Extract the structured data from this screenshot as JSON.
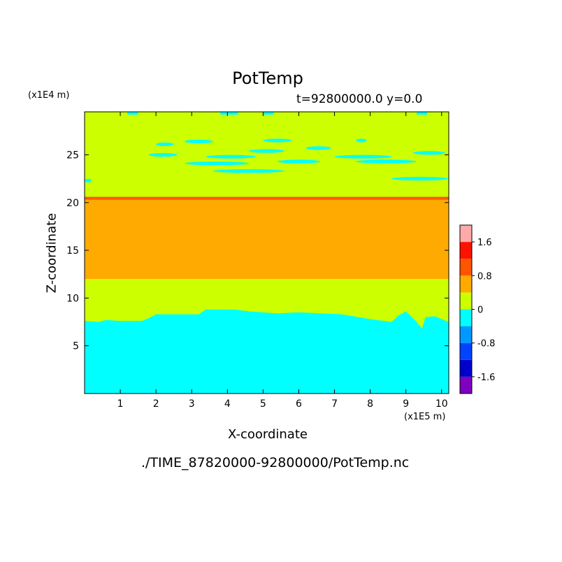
{
  "chart_data": {
    "type": "heatmap",
    "title": "PotTemp",
    "subtitle": "t=92800000.0 y=0.0",
    "xlabel": "X-coordinate",
    "ylabel": "Z-coordinate",
    "x_unit_label": "(x1E5 m)",
    "y_unit_label": "(x1E4 m)",
    "xlim": [
      0,
      10.2
    ],
    "ylim": [
      0,
      29.5
    ],
    "xticks": [
      1,
      2,
      3,
      4,
      5,
      6,
      7,
      8,
      9,
      10
    ],
    "yticks": [
      5,
      10,
      15,
      20,
      25
    ],
    "colorbar": {
      "levels": [
        -2.0,
        -1.6,
        -1.2,
        -0.8,
        -0.4,
        0,
        0.4,
        0.8,
        1.2,
        1.6,
        2.0
      ],
      "colors": [
        "#7f00bf",
        "#0000cc",
        "#0044ff",
        "#0099ff",
        "#00ffff",
        "#ccff00",
        "#ffaa00",
        "#ff5500",
        "#ff1100",
        "#ffaaaa"
      ],
      "tick_labels": [
        "-1.6",
        "-0.8",
        "0",
        "0.8",
        "1.6"
      ],
      "tick_values": [
        -1.6,
        -0.8,
        0,
        0.8,
        1.6
      ]
    },
    "bands": [
      {
        "from": 12,
        "to": 20.3,
        "value": 0.6
      },
      {
        "from": 20.3,
        "to": 20.6,
        "value": 1.0
      }
    ],
    "background_value": 0.2,
    "lower_cold_boundary": {
      "x": [
        0,
        0.4,
        0.6,
        1.0,
        1.6,
        1.8,
        2.0,
        2.2,
        3.2,
        3.4,
        4.2,
        4.6,
        5.4,
        6.0,
        7.2,
        8.0,
        8.6,
        8.8,
        9.0,
        9.3,
        9.45,
        9.55,
        9.8,
        10.2
      ],
      "z": [
        7.6,
        7.5,
        7.7,
        7.6,
        7.6,
        7.9,
        8.3,
        8.3,
        8.3,
        8.8,
        8.8,
        8.6,
        8.4,
        8.5,
        8.3,
        7.8,
        7.5,
        8.2,
        8.6,
        7.5,
        6.8,
        8.0,
        8.1,
        7.5
      ],
      "value": -0.2
    },
    "upper_cold_streaks": [
      {
        "x": [
          0.0,
          0.2
        ],
        "z": 22.3
      },
      {
        "x": [
          1.8,
          2.6
        ],
        "z": 25.0
      },
      {
        "x": [
          2.0,
          2.5
        ],
        "z": 26.1
      },
      {
        "x": [
          2.8,
          3.6
        ],
        "z": 26.4
      },
      {
        "x": [
          2.8,
          4.6
        ],
        "z": 24.1
      },
      {
        "x": [
          3.4,
          4.8
        ],
        "z": 24.8
      },
      {
        "x": [
          3.6,
          5.6
        ],
        "z": 23.3
      },
      {
        "x": [
          4.6,
          5.6
        ],
        "z": 25.4
      },
      {
        "x": [
          5.0,
          5.8
        ],
        "z": 26.5
      },
      {
        "x": [
          5.4,
          6.6
        ],
        "z": 24.3
      },
      {
        "x": [
          6.2,
          6.9
        ],
        "z": 25.7
      },
      {
        "x": [
          7.0,
          8.6
        ],
        "z": 24.8
      },
      {
        "x": [
          7.6,
          9.3
        ],
        "z": 24.3
      },
      {
        "x": [
          8.6,
          10.2
        ],
        "z": 22.5
      },
      {
        "x": [
          9.2,
          10.1
        ],
        "z": 25.2
      },
      {
        "x": [
          7.6,
          7.9
        ],
        "z": 26.5
      }
    ],
    "top_edge_value": -0.2,
    "grid": false
  },
  "footer_path": "./TIME_87820000-92800000/PotTemp.nc"
}
